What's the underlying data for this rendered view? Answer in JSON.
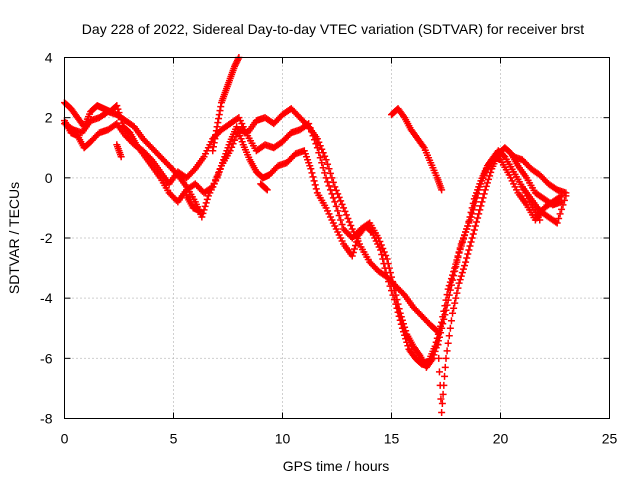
{
  "chart_data": {
    "type": "scatter",
    "title": "Day 228 of 2022, Sidereal Day-to-day VTEC variation (SDTVAR) for receiver brst",
    "xlabel": "GPS time / hours",
    "ylabel": "SDTVAR / TECUs",
    "xlim": [
      0,
      25
    ],
    "ylim": [
      -8,
      4
    ],
    "xticks": [
      0,
      5,
      10,
      15,
      20,
      25
    ],
    "yticks": [
      -8,
      -6,
      -4,
      -2,
      0,
      2,
      4
    ],
    "grid": true,
    "marker": "+",
    "marker_color": "#ff0000",
    "series": [
      {
        "points": [
          [
            0,
            1.8
          ],
          [
            0.4,
            1.6
          ],
          [
            0.8,
            1.5
          ],
          [
            1.2,
            1.9
          ],
          [
            1.6,
            2.0
          ],
          [
            2.0,
            2.2
          ],
          [
            2.4,
            2.1
          ],
          [
            2.8,
            1.9
          ],
          [
            3.2,
            1.7
          ],
          [
            3.6,
            1.3
          ],
          [
            4.0,
            1.0
          ],
          [
            4.4,
            0.7
          ],
          [
            4.8,
            0.4
          ],
          [
            5.2,
            0.1
          ],
          [
            5.6,
            -0.3
          ],
          [
            6.0,
            -0.8
          ],
          [
            6.3,
            -1.3
          ],
          [
            6.6,
            -0.6
          ],
          [
            7.0,
            0.0
          ],
          [
            7.3,
            0.6
          ],
          [
            7.6,
            1.2
          ],
          [
            7.9,
            1.7
          ],
          [
            8.2,
            1.1
          ],
          [
            8.5,
            0.6
          ],
          [
            8.8,
            0.2
          ],
          [
            9.1,
            0.0
          ],
          [
            9.4,
            0.1
          ],
          [
            9.8,
            0.4
          ],
          [
            10.2,
            0.5
          ],
          [
            10.6,
            0.8
          ],
          [
            11.0,
            0.9
          ],
          [
            11.3,
            0.3
          ],
          [
            11.6,
            -0.5
          ],
          [
            12.0,
            -1.0
          ],
          [
            12.4,
            -1.6
          ],
          [
            12.8,
            -2.2
          ],
          [
            13.2,
            -2.6
          ],
          [
            13.5,
            -1.9
          ],
          [
            13.8,
            -1.6
          ],
          [
            14.1,
            -1.8
          ],
          [
            14.5,
            -2.4
          ],
          [
            14.8,
            -3.3
          ],
          [
            15.2,
            -4.2
          ],
          [
            15.5,
            -5.0
          ],
          [
            15.8,
            -5.7
          ],
          [
            16.1,
            -6.0
          ],
          [
            16.4,
            -6.2
          ],
          [
            16.7,
            -6.1
          ],
          [
            17.0,
            -5.6
          ],
          [
            17.3,
            -4.8
          ],
          [
            17.6,
            -3.7
          ],
          [
            17.9,
            -3.0
          ],
          [
            18.2,
            -2.2
          ],
          [
            18.5,
            -1.6
          ],
          [
            18.8,
            -0.7
          ],
          [
            19.1,
            -0.1
          ],
          [
            19.4,
            0.4
          ],
          [
            19.7,
            0.7
          ],
          [
            20.0,
            0.6
          ],
          [
            20.4,
            0.1
          ],
          [
            20.8,
            -0.5
          ],
          [
            21.2,
            -0.9
          ],
          [
            21.6,
            -1.4
          ],
          [
            22.0,
            -1.0
          ],
          [
            22.4,
            -0.8
          ],
          [
            22.8,
            -0.6
          ]
        ]
      },
      {
        "points": [
          [
            0,
            2.5
          ],
          [
            0.3,
            2.3
          ],
          [
            0.6,
            2.0
          ],
          [
            0.9,
            1.7
          ],
          [
            1.2,
            2.2
          ],
          [
            1.5,
            2.4
          ],
          [
            1.8,
            2.3
          ],
          [
            2.1,
            2.2
          ],
          [
            2.4,
            2.4
          ],
          [
            2.7,
            1.7
          ],
          [
            3.0,
            1.5
          ],
          [
            3.3,
            1.1
          ],
          [
            3.6,
            0.8
          ],
          [
            4.0,
            0.4
          ],
          [
            4.4,
            0.0
          ],
          [
            4.8,
            -0.5
          ],
          [
            5.2,
            -0.8
          ],
          [
            5.6,
            -0.4
          ],
          [
            6.0,
            -0.2
          ],
          [
            6.4,
            -0.5
          ],
          [
            6.8,
            -0.3
          ],
          [
            7.2,
            0.4
          ],
          [
            7.6,
            0.9
          ],
          [
            8.0,
            1.6
          ],
          [
            8.4,
            1.5
          ],
          [
            8.8,
            1.9
          ],
          [
            9.2,
            2.0
          ],
          [
            9.6,
            1.8
          ],
          [
            10.0,
            2.1
          ],
          [
            10.4,
            2.3
          ],
          [
            10.8,
            2.0
          ],
          [
            11.2,
            1.7
          ],
          [
            11.6,
            1.3
          ],
          [
            12.0,
            0.6
          ],
          [
            12.4,
            -0.3
          ],
          [
            12.8,
            -1.0
          ],
          [
            13.2,
            -1.7
          ],
          [
            13.6,
            -2.3
          ],
          [
            14.0,
            -2.8
          ],
          [
            14.4,
            -3.1
          ],
          [
            14.8,
            -3.3
          ],
          [
            15.2,
            -3.6
          ],
          [
            15.6,
            -3.9
          ],
          [
            16.0,
            -4.3
          ],
          [
            16.4,
            -4.6
          ],
          [
            16.8,
            -4.9
          ],
          [
            17.1,
            -5.1
          ],
          [
            17.3,
            -7.8
          ],
          [
            17.5,
            -6.0
          ],
          [
            17.8,
            -4.5
          ],
          [
            18.1,
            -3.5
          ],
          [
            18.4,
            -2.8
          ],
          [
            18.7,
            -2.0
          ],
          [
            19.0,
            -1.2
          ],
          [
            19.3,
            -0.4
          ],
          [
            19.6,
            0.3
          ],
          [
            19.9,
            0.8
          ],
          [
            20.2,
            1.0
          ],
          [
            20.5,
            0.8
          ],
          [
            20.8,
            0.4
          ],
          [
            21.2,
            0.0
          ],
          [
            21.6,
            -0.5
          ],
          [
            22.0,
            -0.7
          ],
          [
            22.4,
            -0.9
          ],
          [
            22.8,
            -0.8
          ]
        ]
      },
      {
        "points": [
          [
            0,
            1.9
          ],
          [
            0.3,
            1.5
          ],
          [
            0.6,
            1.4
          ],
          [
            0.9,
            1.0
          ],
          [
            1.2,
            1.2
          ],
          [
            1.6,
            1.5
          ],
          [
            2.0,
            1.6
          ],
          [
            2.4,
            1.8
          ],
          [
            2.8,
            1.4
          ],
          [
            3.2,
            1.1
          ],
          [
            3.6,
            0.9
          ],
          [
            4.0,
            0.6
          ],
          [
            4.4,
            0.2
          ],
          [
            4.8,
            -0.2
          ],
          [
            5.2,
            0.2
          ],
          [
            5.6,
            0.0
          ],
          [
            6.0,
            0.3
          ],
          [
            6.4,
            0.7
          ],
          [
            6.8,
            1.3
          ],
          [
            7.2,
            1.6
          ],
          [
            7.6,
            1.8
          ],
          [
            8.0,
            2.0
          ],
          [
            8.4,
            1.4
          ],
          [
            8.8,
            0.9
          ],
          [
            9.2,
            1.1
          ],
          [
            9.6,
            1.0
          ],
          [
            10.0,
            1.2
          ],
          [
            10.4,
            1.5
          ],
          [
            10.8,
            1.6
          ],
          [
            11.2,
            1.8
          ],
          [
            11.6,
            1.0
          ],
          [
            12.0,
            0.0
          ],
          [
            12.4,
            -0.8
          ],
          [
            12.8,
            -1.7
          ],
          [
            13.2,
            -2.0
          ],
          [
            13.6,
            -1.7
          ],
          [
            14.0,
            -1.5
          ],
          [
            14.4,
            -2.0
          ],
          [
            14.8,
            -2.7
          ],
          [
            15.1,
            -3.6
          ],
          [
            15.4,
            -4.5
          ],
          [
            15.7,
            -5.2
          ],
          [
            16.0,
            -5.6
          ],
          [
            16.3,
            -5.9
          ],
          [
            16.6,
            -6.3
          ],
          [
            16.9,
            -6.0
          ],
          [
            17.2,
            -5.3
          ],
          [
            17.5,
            -4.4
          ],
          [
            17.8,
            -3.4
          ],
          [
            18.1,
            -2.5
          ],
          [
            18.4,
            -1.8
          ],
          [
            18.7,
            -1.2
          ],
          [
            19.0,
            -0.4
          ],
          [
            19.3,
            0.2
          ],
          [
            19.6,
            0.6
          ],
          [
            19.9,
            0.9
          ],
          [
            20.2,
            0.7
          ],
          [
            20.6,
            0.2
          ],
          [
            21.0,
            -0.3
          ],
          [
            21.4,
            -0.7
          ],
          [
            21.8,
            -1.1
          ],
          [
            22.2,
            -1.3
          ],
          [
            22.6,
            -1.5
          ],
          [
            23.0,
            -0.6
          ]
        ]
      },
      {
        "points": [
          [
            6.8,
            0.9
          ],
          [
            7.0,
            1.7
          ],
          [
            7.2,
            2.5
          ],
          [
            7.4,
            2.9
          ],
          [
            7.6,
            3.3
          ],
          [
            7.8,
            3.7
          ],
          [
            8.0,
            4.0
          ],
          [
            5.6,
            -0.6
          ],
          [
            5.9,
            -1.0
          ],
          [
            6.2,
            -1.1
          ],
          [
            9.3,
            -0.4
          ],
          [
            9.0,
            -0.2
          ],
          [
            2.4,
            1.1
          ],
          [
            2.6,
            0.7
          ]
        ]
      },
      {
        "points": [
          [
            15.0,
            2.1
          ],
          [
            15.3,
            2.3
          ],
          [
            15.6,
            2.0
          ],
          [
            15.9,
            1.6
          ],
          [
            16.2,
            1.3
          ],
          [
            16.5,
            1.0
          ],
          [
            16.8,
            0.5
          ],
          [
            17.1,
            0.0
          ],
          [
            17.3,
            -0.4
          ]
        ]
      },
      {
        "points": [
          [
            20.6,
            0.7
          ],
          [
            21.0,
            0.6
          ],
          [
            21.4,
            0.3
          ],
          [
            21.8,
            0.1
          ],
          [
            22.2,
            -0.2
          ],
          [
            22.6,
            -0.4
          ],
          [
            23.0,
            -0.5
          ],
          [
            21.0,
            -0.3
          ],
          [
            21.4,
            -0.9
          ],
          [
            21.8,
            -1.4
          ]
        ]
      }
    ]
  }
}
